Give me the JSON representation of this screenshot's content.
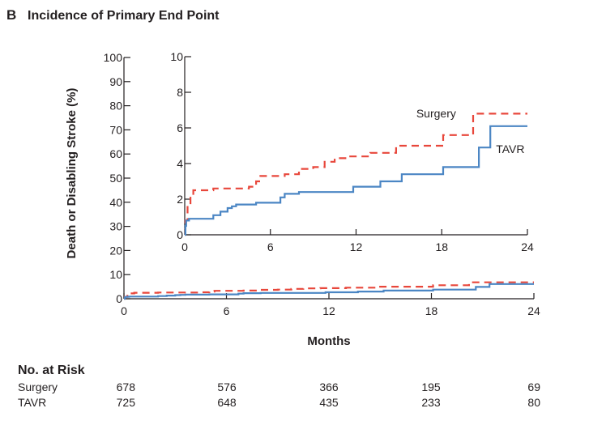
{
  "panel": {
    "letter": "B",
    "title": "Incidence of Primary End Point"
  },
  "chart_data": {
    "type": "line",
    "title": "Incidence of Primary End Point",
    "xlabel": "Months",
    "ylabel": "Death or Disabling Stroke (%)",
    "xlim": [
      0,
      24
    ],
    "ylim": [
      0,
      100
    ],
    "xticks": [
      0,
      6,
      12,
      18,
      24
    ],
    "yticks": [
      0,
      10,
      20,
      30,
      40,
      50,
      60,
      70,
      80,
      90,
      100
    ],
    "inset": {
      "xlim": [
        0,
        24
      ],
      "ylim": [
        0,
        10
      ],
      "xticks": [
        0,
        6,
        12,
        18,
        24
      ],
      "yticks": [
        0,
        2,
        4,
        6,
        8,
        10
      ]
    },
    "series": [
      {
        "name": "Surgery",
        "color": "#e8473b",
        "style": "dashed",
        "steps": [
          [
            0,
            0
          ],
          [
            0.05,
            0.8
          ],
          [
            0.2,
            1.7
          ],
          [
            0.4,
            2.2
          ],
          [
            0.6,
            2.5
          ],
          [
            1.0,
            2.5
          ],
          [
            2.0,
            2.6
          ],
          [
            3.0,
            2.6
          ],
          [
            4.5,
            2.7
          ],
          [
            5.0,
            3.0
          ],
          [
            5.3,
            3.3
          ],
          [
            7.0,
            3.4
          ],
          [
            8.0,
            3.7
          ],
          [
            9.0,
            3.8
          ],
          [
            9.8,
            4.1
          ],
          [
            10.5,
            4.3
          ],
          [
            11.5,
            4.4
          ],
          [
            12.0,
            4.4
          ],
          [
            13.0,
            4.6
          ],
          [
            14.5,
            4.6
          ],
          [
            14.8,
            5.0
          ],
          [
            16.0,
            5.0
          ],
          [
            18.0,
            5.0
          ],
          [
            18.1,
            5.6
          ],
          [
            20.0,
            5.6
          ],
          [
            20.2,
            6.8
          ],
          [
            22.0,
            6.8
          ],
          [
            24.0,
            6.8
          ]
        ]
      },
      {
        "name": "TAVR",
        "color": "#4b86c4",
        "style": "solid",
        "steps": [
          [
            0,
            0
          ],
          [
            0.05,
            0.5
          ],
          [
            0.1,
            0.8
          ],
          [
            0.3,
            0.9
          ],
          [
            1.0,
            0.9
          ],
          [
            1.9,
            0.9
          ],
          [
            2.0,
            1.1
          ],
          [
            2.5,
            1.3
          ],
          [
            3.0,
            1.5
          ],
          [
            3.3,
            1.6
          ],
          [
            3.6,
            1.7
          ],
          [
            4.5,
            1.7
          ],
          [
            5.0,
            1.8
          ],
          [
            6.5,
            1.8
          ],
          [
            6.7,
            2.1
          ],
          [
            7.0,
            2.3
          ],
          [
            8.0,
            2.4
          ],
          [
            10.0,
            2.4
          ],
          [
            11.5,
            2.4
          ],
          [
            11.8,
            2.7
          ],
          [
            13.5,
            2.7
          ],
          [
            13.7,
            3.0
          ],
          [
            15.0,
            3.0
          ],
          [
            15.2,
            3.4
          ],
          [
            16.5,
            3.4
          ],
          [
            18.0,
            3.4
          ],
          [
            18.1,
            3.8
          ],
          [
            20.5,
            3.8
          ],
          [
            20.6,
            4.9
          ],
          [
            21.3,
            4.9
          ],
          [
            21.4,
            6.1
          ],
          [
            22.5,
            6.1
          ],
          [
            24.0,
            6.1
          ]
        ]
      }
    ]
  },
  "risk_table": {
    "heading": "No. at Risk",
    "rows": [
      {
        "label": "Surgery",
        "values": [
          "678",
          "576",
          "366",
          "195",
          "69"
        ]
      },
      {
        "label": "TAVR",
        "values": [
          "725",
          "648",
          "435",
          "233",
          "80"
        ]
      }
    ]
  }
}
